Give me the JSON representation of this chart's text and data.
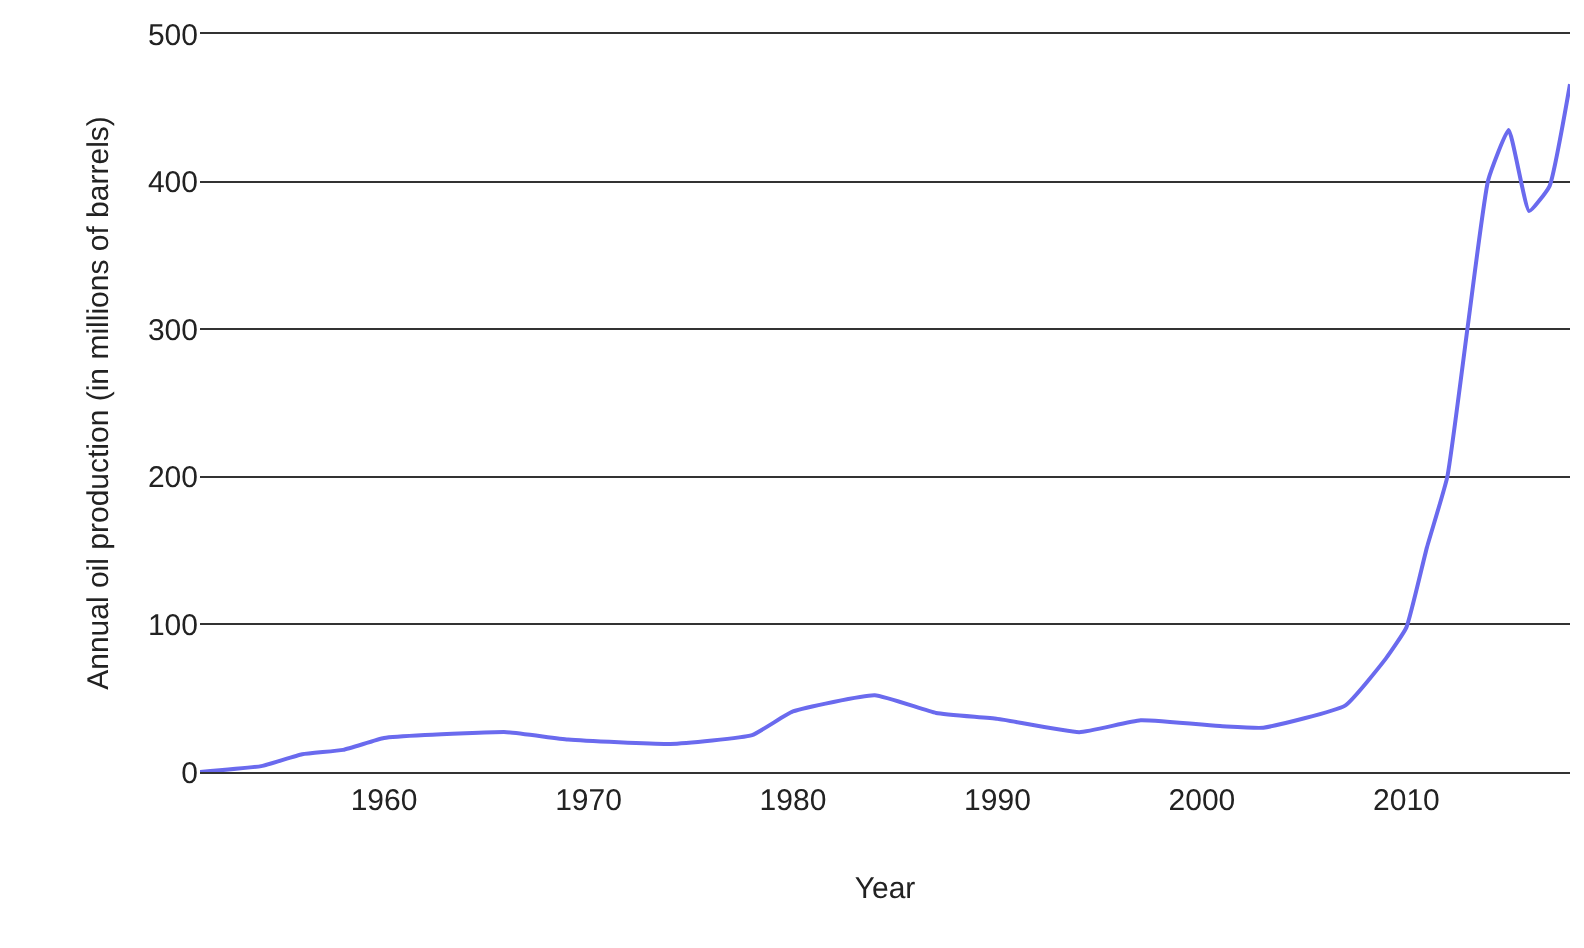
{
  "chart_data": {
    "type": "line",
    "xlabel": "Year",
    "ylabel": "Annual oil production (in millions of barrels)",
    "x": [
      1951,
      1954,
      1956,
      1958,
      1960,
      1962,
      1966,
      1969,
      1974,
      1978,
      1980,
      1984,
      1987,
      1990,
      1994,
      1997,
      2001,
      2003,
      2007,
      2009,
      2010,
      2011,
      2012,
      2013,
      2014,
      2015,
      2016,
      2017,
      2018
    ],
    "series": [
      {
        "color": "#6a6aee",
        "values": [
          0,
          4,
          12,
          15,
          23,
          25,
          27,
          22,
          19,
          25,
          41,
          52,
          40,
          36,
          27,
          35,
          31,
          30,
          45,
          77,
          98,
          152,
          200,
          302,
          401,
          435,
          380,
          397,
          466
        ]
      }
    ],
    "xlim": [
      1951,
      2018
    ],
    "xticks": [
      1960,
      1970,
      1980,
      1990,
      2000,
      2010
    ],
    "ylim": [
      0,
      500
    ],
    "yticks": [
      0,
      100,
      200,
      300,
      400,
      500
    ],
    "grid": "y",
    "marker": "none",
    "line_style": "solid"
  }
}
